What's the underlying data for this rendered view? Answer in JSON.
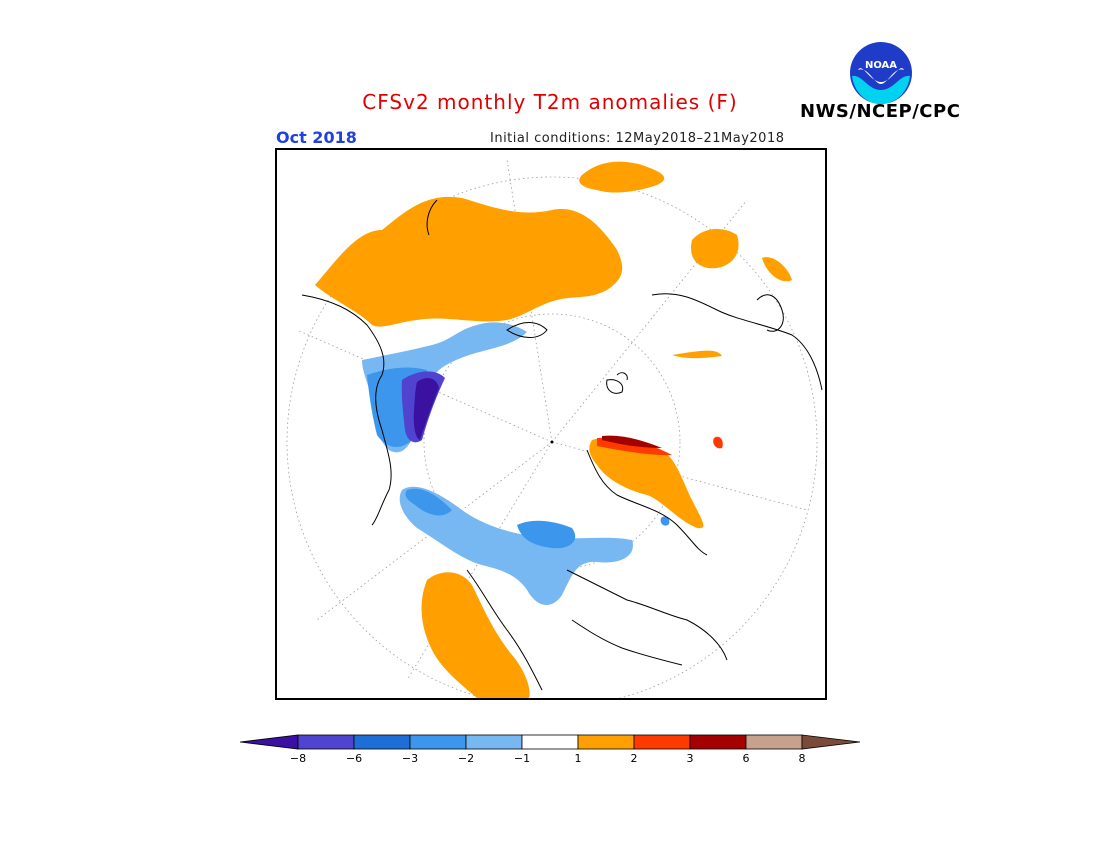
{
  "header": {
    "title": "CFSv2 monthly T2m anomalies (F)",
    "valid_month": "Oct 2018",
    "initial_conditions": "Initial conditions: 12May2018–21May2018",
    "agency": "NWS/NCEP/CPC",
    "logo_text": "NOAA"
  },
  "map": {
    "projection": "north polar stereographic",
    "variable": "2m temperature anomaly",
    "units": "F"
  },
  "legend": {
    "labels": [
      "−8",
      "−6",
      "−3",
      "−2",
      "−1",
      "1",
      "2",
      "3",
      "6",
      "8"
    ],
    "colors": [
      "#3a11a0",
      "#5043d0",
      "#1e6ed8",
      "#3c96ec",
      "#78b8f2",
      "#ffffff",
      "#ffa000",
      "#ff3a00",
      "#a50000",
      "#c8a090",
      "#7a4a3a"
    ]
  }
}
